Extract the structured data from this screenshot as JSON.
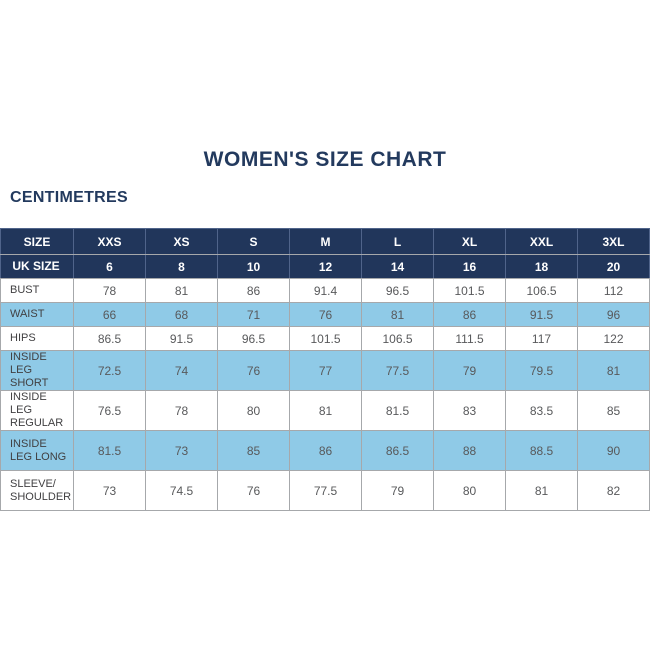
{
  "title": "WOMEN'S SIZE CHART",
  "unit_label": "CENTIMETRES",
  "colors": {
    "navy_header": "#21365B",
    "light_blue_row": "#8FCAE7",
    "grid_line": "#A6A8AB",
    "heading_text": "#233A5E",
    "data_text": "#58595B",
    "label_text": "#414042"
  },
  "chart_data": {
    "type": "table",
    "title": "WOMEN'S SIZE CHART",
    "unit": "CENTIMETRES",
    "columns": [
      "SIZE",
      "XXS",
      "XS",
      "S",
      "M",
      "L",
      "XL",
      "XXL",
      "3XL"
    ],
    "rows": [
      {
        "label": "UK SIZE",
        "style": "navy",
        "tall": false,
        "values": [
          "6",
          "8",
          "10",
          "12",
          "14",
          "16",
          "18",
          "20"
        ]
      },
      {
        "label": "BUST",
        "style": "white",
        "tall": false,
        "values": [
          "78",
          "81",
          "86",
          "91.4",
          "96.5",
          "101.5",
          "106.5",
          "112"
        ]
      },
      {
        "label": "WAIST",
        "style": "blue",
        "tall": false,
        "values": [
          "66",
          "68",
          "71",
          "76",
          "81",
          "86",
          "91.5",
          "96"
        ]
      },
      {
        "label": "HIPS",
        "style": "white",
        "tall": false,
        "values": [
          "86.5",
          "91.5",
          "96.5",
          "101.5",
          "106.5",
          "111.5",
          "117",
          "122"
        ]
      },
      {
        "label": "INSIDE LEG SHORT",
        "style": "blue",
        "tall": true,
        "values": [
          "72.5",
          "74",
          "76",
          "77",
          "77.5",
          "79",
          "79.5",
          "81"
        ]
      },
      {
        "label": "INSIDE LEG REGULAR",
        "style": "white",
        "tall": true,
        "values": [
          "76.5",
          "78",
          "80",
          "81",
          "81.5",
          "83",
          "83.5",
          "85"
        ]
      },
      {
        "label": "INSIDE LEG LONG",
        "style": "blue",
        "tall": true,
        "values": [
          "81.5",
          "73",
          "85",
          "86",
          "86.5",
          "88",
          "88.5",
          "90"
        ]
      },
      {
        "label": "SLEEVE/\nSHOULDER",
        "style": "white",
        "tall": true,
        "values": [
          "73",
          "74.5",
          "76",
          "77.5",
          "79",
          "80",
          "81",
          "82"
        ]
      }
    ]
  }
}
